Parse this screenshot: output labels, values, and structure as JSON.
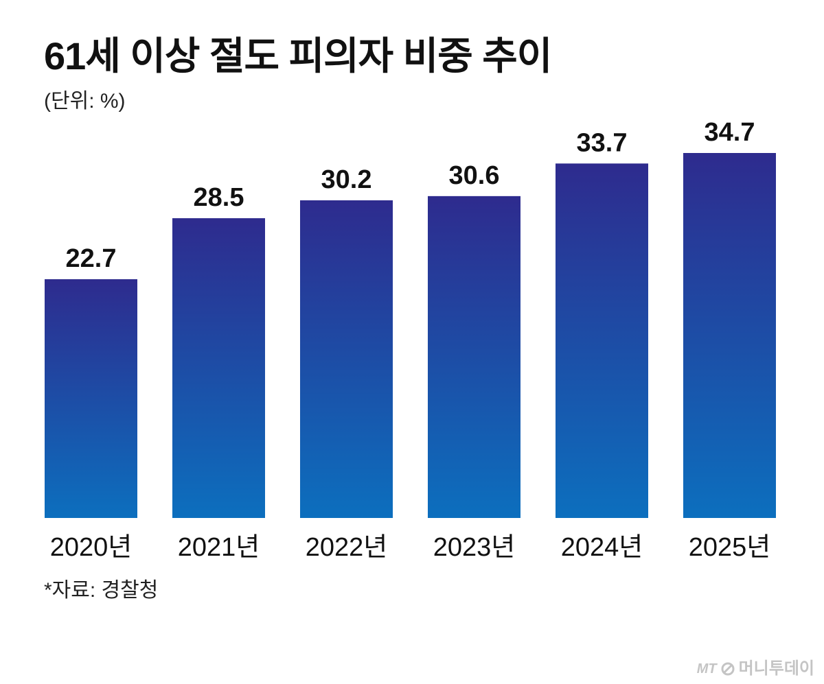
{
  "header": {
    "title": "61세 이상 절도 피의자 비중 추이",
    "unit": "(단위: %)"
  },
  "footer": {
    "source": "*자료: 경찰청"
  },
  "brand": {
    "mt": "MT",
    "name": "머니투데이",
    "logo_icon": "mt-logo-icon"
  },
  "colors": {
    "bar_top": "#2e2b8e",
    "bar_bottom": "#0c6fbe"
  },
  "chart_data": {
    "type": "bar",
    "title": "61세 이상 절도 피의자 비중 추이",
    "unit": "(단위: %)",
    "categories": [
      "2020년",
      "2021년",
      "2022년",
      "2023년",
      "2024년",
      "2025년"
    ],
    "values": [
      22.7,
      28.5,
      30.2,
      30.6,
      33.7,
      34.7
    ],
    "value_labels": [
      "22.7",
      "28.5",
      "30.2",
      "30.6",
      "33.7",
      "34.7"
    ],
    "ylim": [
      0,
      34.7
    ],
    "grid": false,
    "legend": "none",
    "data_labels": true
  }
}
